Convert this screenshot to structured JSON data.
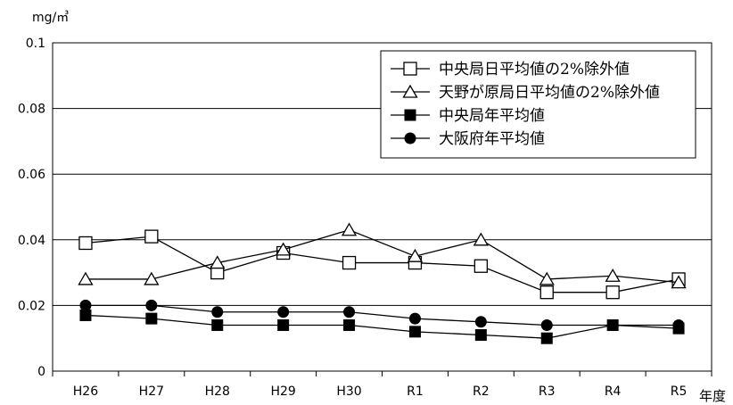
{
  "chart_data": {
    "type": "line",
    "title": "",
    "unit_label": "mg/㎥",
    "xlabel": "年度",
    "ylabel": "",
    "categories": [
      "H26",
      "H27",
      "H28",
      "H29",
      "H30",
      "R1",
      "R2",
      "R3",
      "R4",
      "R5"
    ],
    "ylim": [
      0,
      0.1
    ],
    "yticks": [
      0,
      0.02,
      0.04,
      0.06,
      0.08,
      0.1
    ],
    "ytick_labels": [
      "0",
      "0.02",
      "0.04",
      "0.06",
      "0.08",
      "0.1"
    ],
    "grid": "horizontal",
    "legend_position": "top-right",
    "series": [
      {
        "name": "中央局日平均値の2%除外値",
        "marker": "square-open",
        "color": "#000000",
        "values": [
          0.039,
          0.041,
          0.03,
          0.036,
          0.033,
          0.033,
          0.032,
          0.024,
          0.024,
          0.028
        ]
      },
      {
        "name": "天野が原局日平均値の2%除外値",
        "marker": "triangle-open",
        "color": "#000000",
        "values": [
          0.028,
          0.028,
          0.033,
          0.037,
          0.043,
          0.035,
          0.04,
          0.028,
          0.029,
          0.027
        ]
      },
      {
        "name": "中央局年平均値",
        "marker": "square-filled",
        "color": "#000000",
        "values": [
          0.017,
          0.016,
          0.014,
          0.014,
          0.014,
          0.012,
          0.011,
          0.01,
          0.014,
          0.013
        ]
      },
      {
        "name": "大阪府年平均値",
        "marker": "circle-filled",
        "color": "#000000",
        "values": [
          0.02,
          0.02,
          0.018,
          0.018,
          0.018,
          0.016,
          0.015,
          0.014,
          0.014,
          0.014
        ]
      }
    ]
  }
}
